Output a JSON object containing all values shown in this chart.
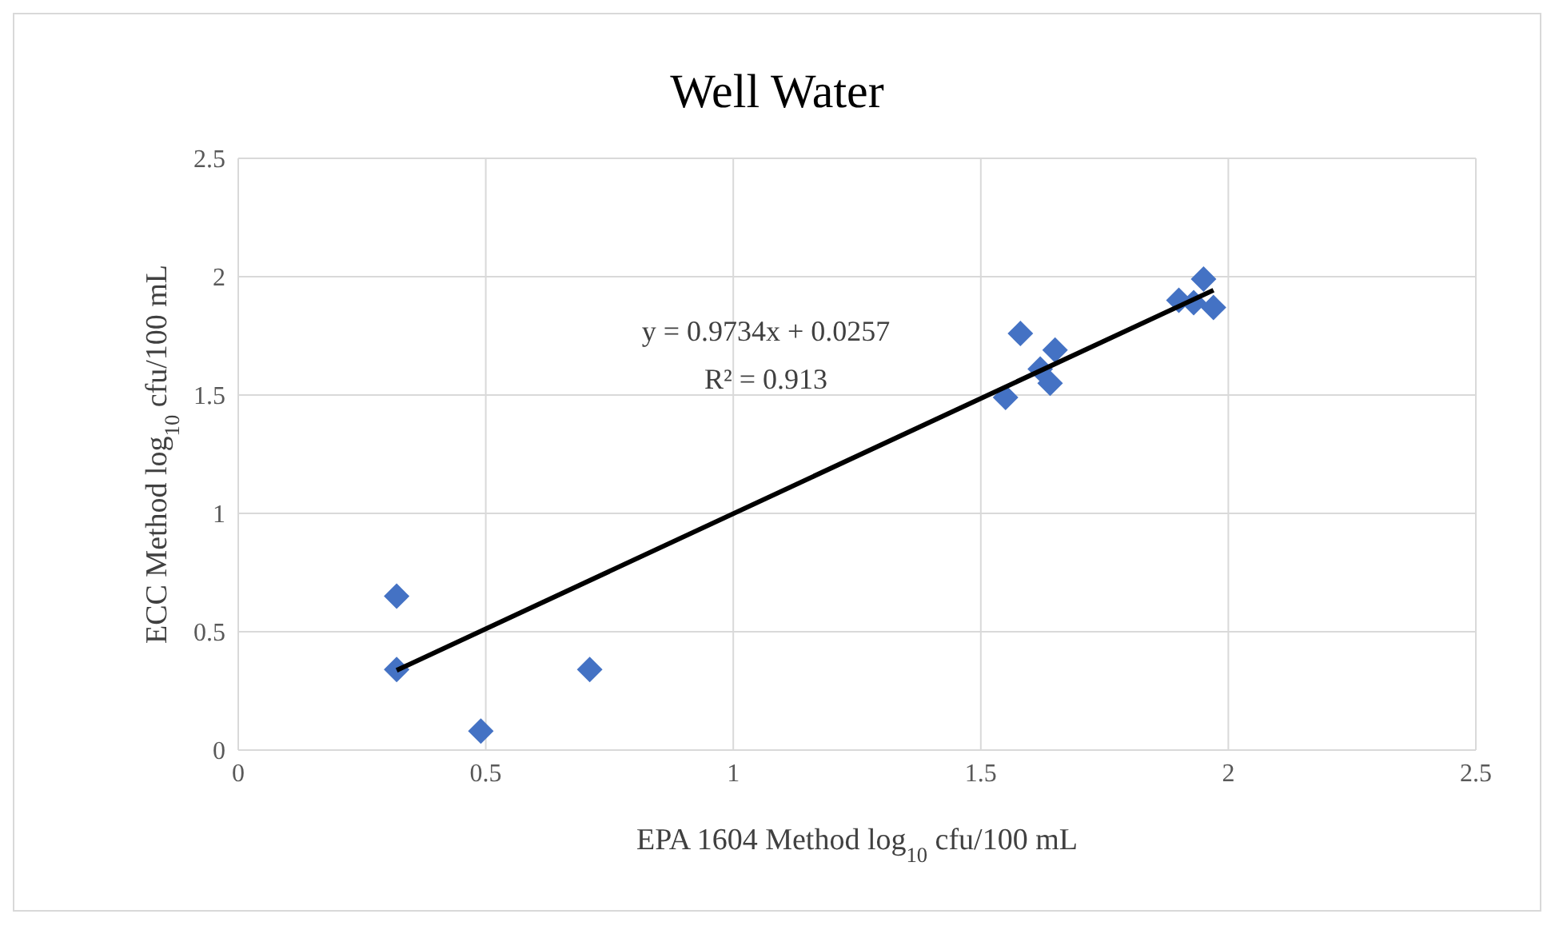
{
  "chart_data": {
    "type": "scatter",
    "title": "Well Water",
    "xlabel": "EPA 1604 Method log$_{10}$ cfu/100 mL",
    "ylabel": "ECC Method log$_{10}$ cfu/100 mL",
    "x": [
      0.32,
      0.32,
      0.49,
      0.71,
      1.55,
      1.58,
      1.62,
      1.64,
      1.65,
      1.9,
      1.93,
      1.95,
      1.97
    ],
    "series": [
      {
        "color": "#4472c4",
        "values": [
          0.65,
          0.34,
          0.08,
          0.34,
          1.49,
          1.76,
          1.61,
          1.55,
          1.69,
          1.9,
          1.89,
          1.99,
          1.87
        ],
        "marker": "diamond"
      },
      {
        "type": "line",
        "color": "#000000",
        "x": [
          0.32,
          1.97
        ],
        "values": [
          0.337,
          1.943
        ],
        "marker": "none"
      }
    ],
    "annotations": [
      "y = 0.9734x + 0.0257",
      "R² = 0.913"
    ],
    "xlim": [
      0,
      2.5
    ],
    "ylim": [
      0,
      2.5
    ],
    "xticks": [
      0,
      0.5,
      1,
      1.5,
      2,
      2.5
    ],
    "yticks": [
      0,
      0.5,
      1,
      1.5,
      2,
      2.5
    ],
    "grid": true
  }
}
